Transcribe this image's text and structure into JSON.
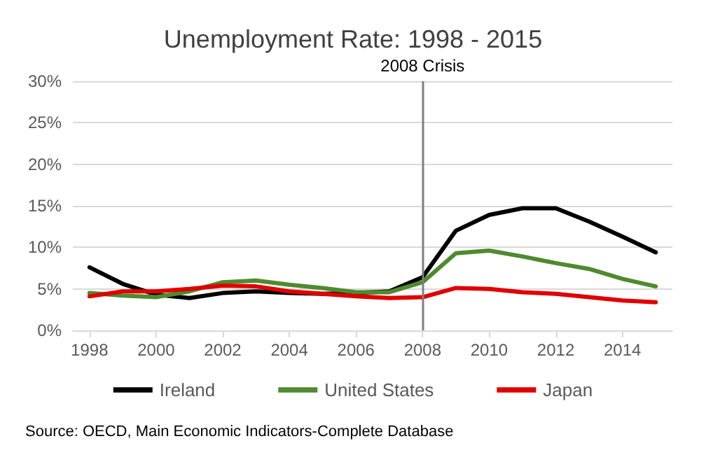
{
  "chart_data": {
    "type": "line",
    "title": "Unemployment Rate: 1998 - 2015",
    "x": [
      1998,
      1999,
      2000,
      2001,
      2002,
      2003,
      2004,
      2005,
      2006,
      2007,
      2008,
      2009,
      2010,
      2011,
      2012,
      2013,
      2014,
      2015
    ],
    "series": [
      {
        "name": "Ireland",
        "color": "#000000",
        "values": [
          7.6,
          5.6,
          4.3,
          3.9,
          4.5,
          4.7,
          4.5,
          4.4,
          4.5,
          4.7,
          6.4,
          12.0,
          13.9,
          14.7,
          14.7,
          13.1,
          11.3,
          9.4
        ]
      },
      {
        "name": "United States",
        "color": "#4e8a2e",
        "values": [
          4.5,
          4.2,
          4.0,
          4.7,
          5.8,
          6.0,
          5.5,
          5.1,
          4.6,
          4.6,
          5.8,
          9.3,
          9.6,
          8.9,
          8.1,
          7.4,
          6.2,
          5.3
        ]
      },
      {
        "name": "Japan",
        "color": "#e00000",
        "values": [
          4.1,
          4.7,
          4.7,
          5.0,
          5.4,
          5.3,
          4.7,
          4.4,
          4.1,
          3.9,
          4.0,
          5.1,
          5.0,
          4.6,
          4.4,
          4.0,
          3.6,
          3.4
        ]
      }
    ],
    "xlim": [
      1997.5,
      2015.5
    ],
    "xticks": [
      1998,
      2000,
      2002,
      2004,
      2006,
      2008,
      2010,
      2012,
      2014
    ],
    "ylim": [
      0,
      30
    ],
    "yticks": [
      {
        "value": 0,
        "label": "0%"
      },
      {
        "value": 5,
        "label": "5%"
      },
      {
        "value": 10,
        "label": "10%"
      },
      {
        "value": 15,
        "label": "15%"
      },
      {
        "value": 20,
        "label": "20%"
      },
      {
        "value": 25,
        "label": "25%"
      },
      {
        "value": 30,
        "label": "30%"
      }
    ],
    "ref_lines": [
      {
        "axis": "x",
        "value": 2008,
        "label": "2008 Crisis",
        "color": "#808080"
      }
    ],
    "annotations": [
      "Source: OECD, Main Economic Indicators-Complete Database"
    ],
    "grid": "y",
    "legend": "bottom",
    "marker": "none",
    "line_style": "solid"
  }
}
